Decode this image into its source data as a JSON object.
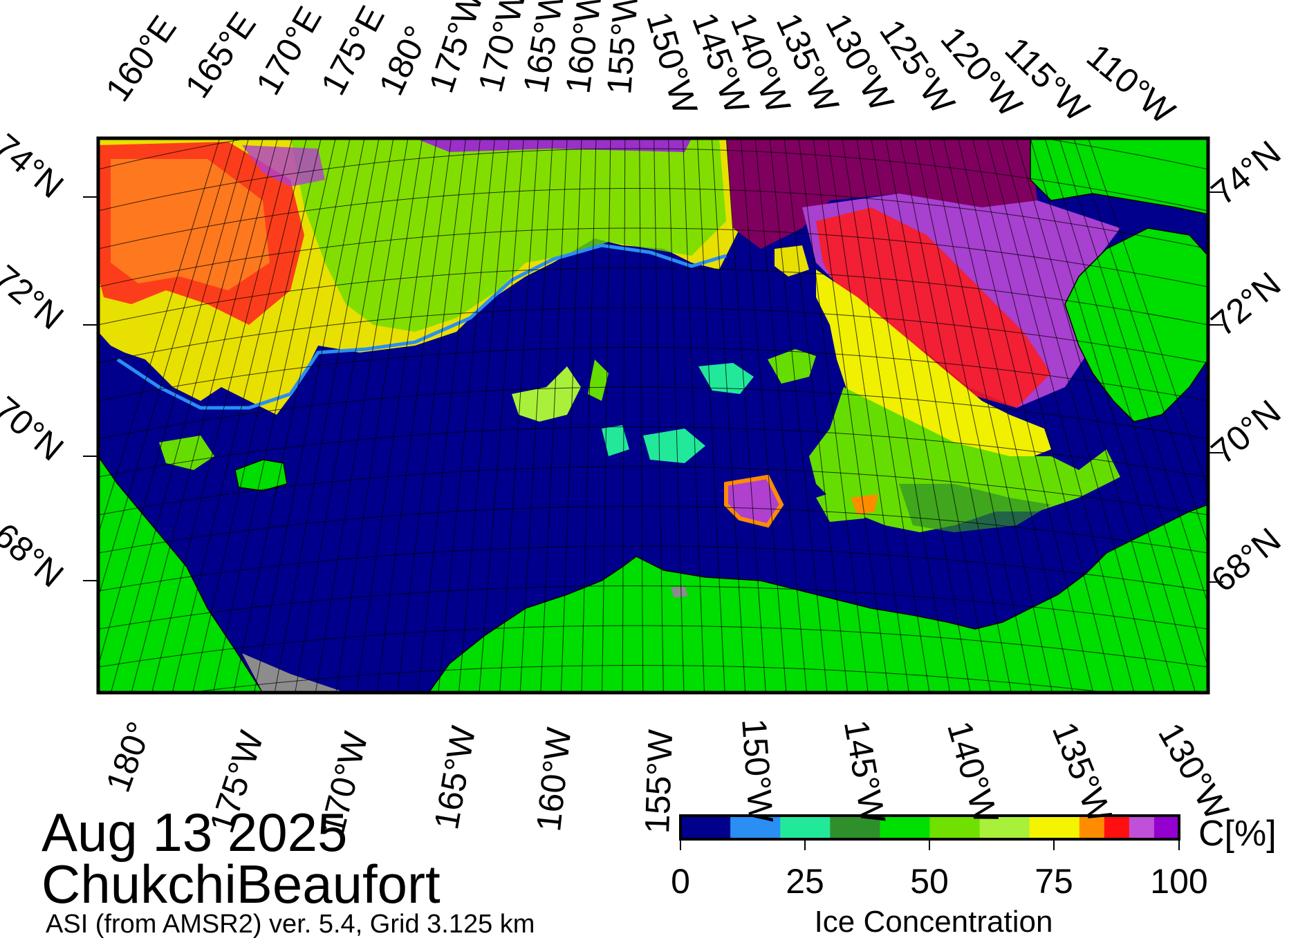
{
  "map": {
    "title_date": "Aug 13 2025",
    "region_name": "ChukchiBeaufort",
    "product_line": "ASI (from AMSR2) ver. 5.4,  Grid 3.125 km",
    "top_lon_labels": [
      "160°E",
      "165°E",
      "170°E",
      "175°E",
      "180°",
      "175°W",
      "170°W",
      "165°W",
      "160°W",
      "155°W",
      "150°W",
      "145°W",
      "140°W",
      "135°W",
      "130°W",
      "125°W",
      "120°W",
      "115°W",
      "110°W"
    ],
    "bottom_lon_labels": [
      "180°",
      "175°W",
      "170°W",
      "165°W",
      "160°W",
      "155°W",
      "150°W",
      "145°W",
      "140°W",
      "135°W",
      "130°W"
    ],
    "left_lat_labels": [
      "74°N",
      "72°N",
      "70°N",
      "68°N"
    ],
    "right_lat_labels": [
      "74°N",
      "72°N",
      "70°N",
      "68°N"
    ],
    "colors": {
      "open_water": "#00008c",
      "land": "#00dd00",
      "land_missing": "#8c8c8c",
      "coast_line": "#000000",
      "frame": "#000000"
    }
  },
  "colorbar": {
    "title": "Ice Concentration",
    "unit": "C[%]",
    "tick_labels": [
      "0",
      "25",
      "50",
      "75",
      "100"
    ],
    "bins": [
      {
        "from": 0,
        "to": 10,
        "color": "#00008c"
      },
      {
        "from": 10,
        "to": 20,
        "color": "#2a8ef2"
      },
      {
        "from": 20,
        "to": 30,
        "color": "#22e89a"
      },
      {
        "from": 30,
        "to": 40,
        "color": "#2f8f2a"
      },
      {
        "from": 40,
        "to": 50,
        "color": "#00e000"
      },
      {
        "from": 50,
        "to": 60,
        "color": "#70e000"
      },
      {
        "from": 60,
        "to": 70,
        "color": "#a8f03a"
      },
      {
        "from": 70,
        "to": 75,
        "color": "#f4f400"
      },
      {
        "from": 75,
        "to": 80,
        "color": "#f4f400"
      },
      {
        "from": 80,
        "to": 85,
        "color": "#ff8c00"
      },
      {
        "from": 85,
        "to": 90,
        "color": "#ff1010"
      },
      {
        "from": 90,
        "to": 95,
        "color": "#c050d8"
      },
      {
        "from": 95,
        "to": 100,
        "color": "#9400d0"
      }
    ]
  }
}
